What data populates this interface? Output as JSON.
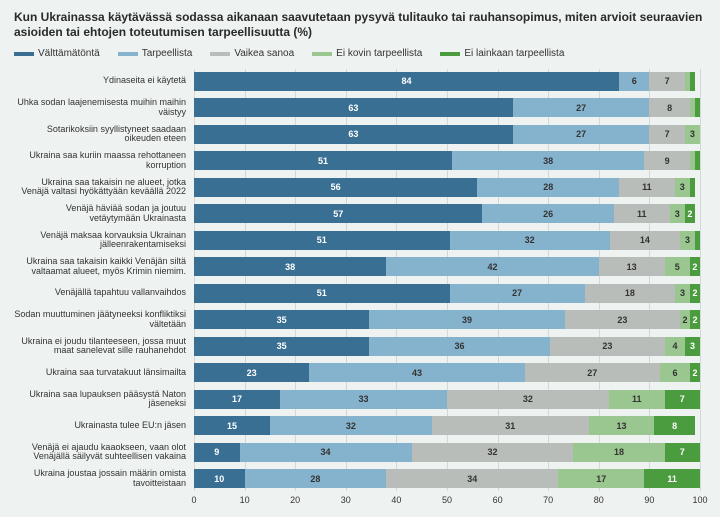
{
  "title": "Kun Ukrainassa käytävässä sodassa aikanaan saavutetaan pysyvä tulitauko tai rauhansopimus, miten arvioit seuraavien asioiden tai ehtojen toteutumisen tarpeellisuutta (%)",
  "legend": [
    {
      "label": "Välttämätöntä",
      "color": "#3a6f94"
    },
    {
      "label": "Tarpeellista",
      "color": "#85b3ce"
    },
    {
      "label": "Vaikea sanoa",
      "color": "#b8bdb9"
    },
    {
      "label": "Ei kovin tarpeellista",
      "color": "#99c78f"
    },
    {
      "label": "Ei lainkaan tarpeellista",
      "color": "#4b9b3f"
    }
  ],
  "series_colors": [
    "#3a6f94",
    "#85b3ce",
    "#b8bdb9",
    "#99c78f",
    "#4b9b3f"
  ],
  "dark_text_series": [
    false,
    true,
    true,
    true,
    false
  ],
  "rows": [
    {
      "label": "Ydinaseita ei käytetä",
      "values": [
        84,
        6,
        7,
        1,
        1
      ]
    },
    {
      "label": "Uhka sodan laajenemisesta muihin maihin väistyy",
      "values": [
        63,
        27,
        8,
        1,
        1
      ]
    },
    {
      "label": "Sotarikoksiin syyllistyneet saadaan oikeuden eteen",
      "values": [
        63,
        27,
        7,
        3,
        0
      ]
    },
    {
      "label": "Ukraina saa kuriin maassa rehottaneen korruption",
      "values": [
        51,
        38,
        9,
        1,
        1
      ]
    },
    {
      "label": "Ukraina saa takaisin ne alueet, jotka Venäjä valtasi hyökättyään keväällä 2022",
      "values": [
        56,
        28,
        11,
        3,
        1
      ]
    },
    {
      "label": "Venäjä häviää sodan ja joutuu vetäytymään Ukrainasta",
      "values": [
        57,
        26,
        11,
        3,
        2
      ]
    },
    {
      "label": "Venäjä maksaa korvauksia Ukrainan jälleenrakentamiseksi",
      "values": [
        51,
        32,
        14,
        3,
        1
      ]
    },
    {
      "label": "Ukraina saa takaisin kaikki Venäjän siltä valtaamat alueet, myös Krimin niemim.",
      "values": [
        38,
        42,
        13,
        5,
        2
      ]
    },
    {
      "label": "Venäjällä tapahtuu vallanvaihdos",
      "values": [
        51,
        27,
        18,
        3,
        2
      ]
    },
    {
      "label": "Sodan muuttuminen jäätyneeksi konfliktiksi vältetään",
      "values": [
        35,
        39,
        23,
        2,
        2
      ]
    },
    {
      "label": "Ukraina ei joudu tilanteeseen, jossa muut maat sanelevat sille rauhanehdot",
      "values": [
        35,
        36,
        23,
        4,
        3
      ]
    },
    {
      "label": "Ukraina saa turvatakuut länsimailta",
      "values": [
        23,
        43,
        27,
        6,
        2
      ]
    },
    {
      "label": "Ukraina saa lupauksen pääsystä Naton jäseneksi",
      "values": [
        17,
        33,
        32,
        11,
        7
      ]
    },
    {
      "label": "Ukrainasta tulee EU:n jäsen",
      "values": [
        15,
        32,
        31,
        13,
        8
      ]
    },
    {
      "label": "Venäjä ei ajaudu kaaokseen, vaan olot Venäjällä säilyvät suhteellisen vakaina",
      "values": [
        9,
        34,
        32,
        18,
        7
      ]
    },
    {
      "label": "Ukraina joustaa jossain määrin omista tavoitteistaan",
      "values": [
        10,
        28,
        34,
        17,
        11
      ]
    }
  ],
  "axis": {
    "min": 0,
    "max": 100,
    "step": 10
  },
  "background_color": "#eef2f1",
  "grid_color": "#d2d8d6",
  "label_fontsize": 9,
  "title_fontsize": 12
}
